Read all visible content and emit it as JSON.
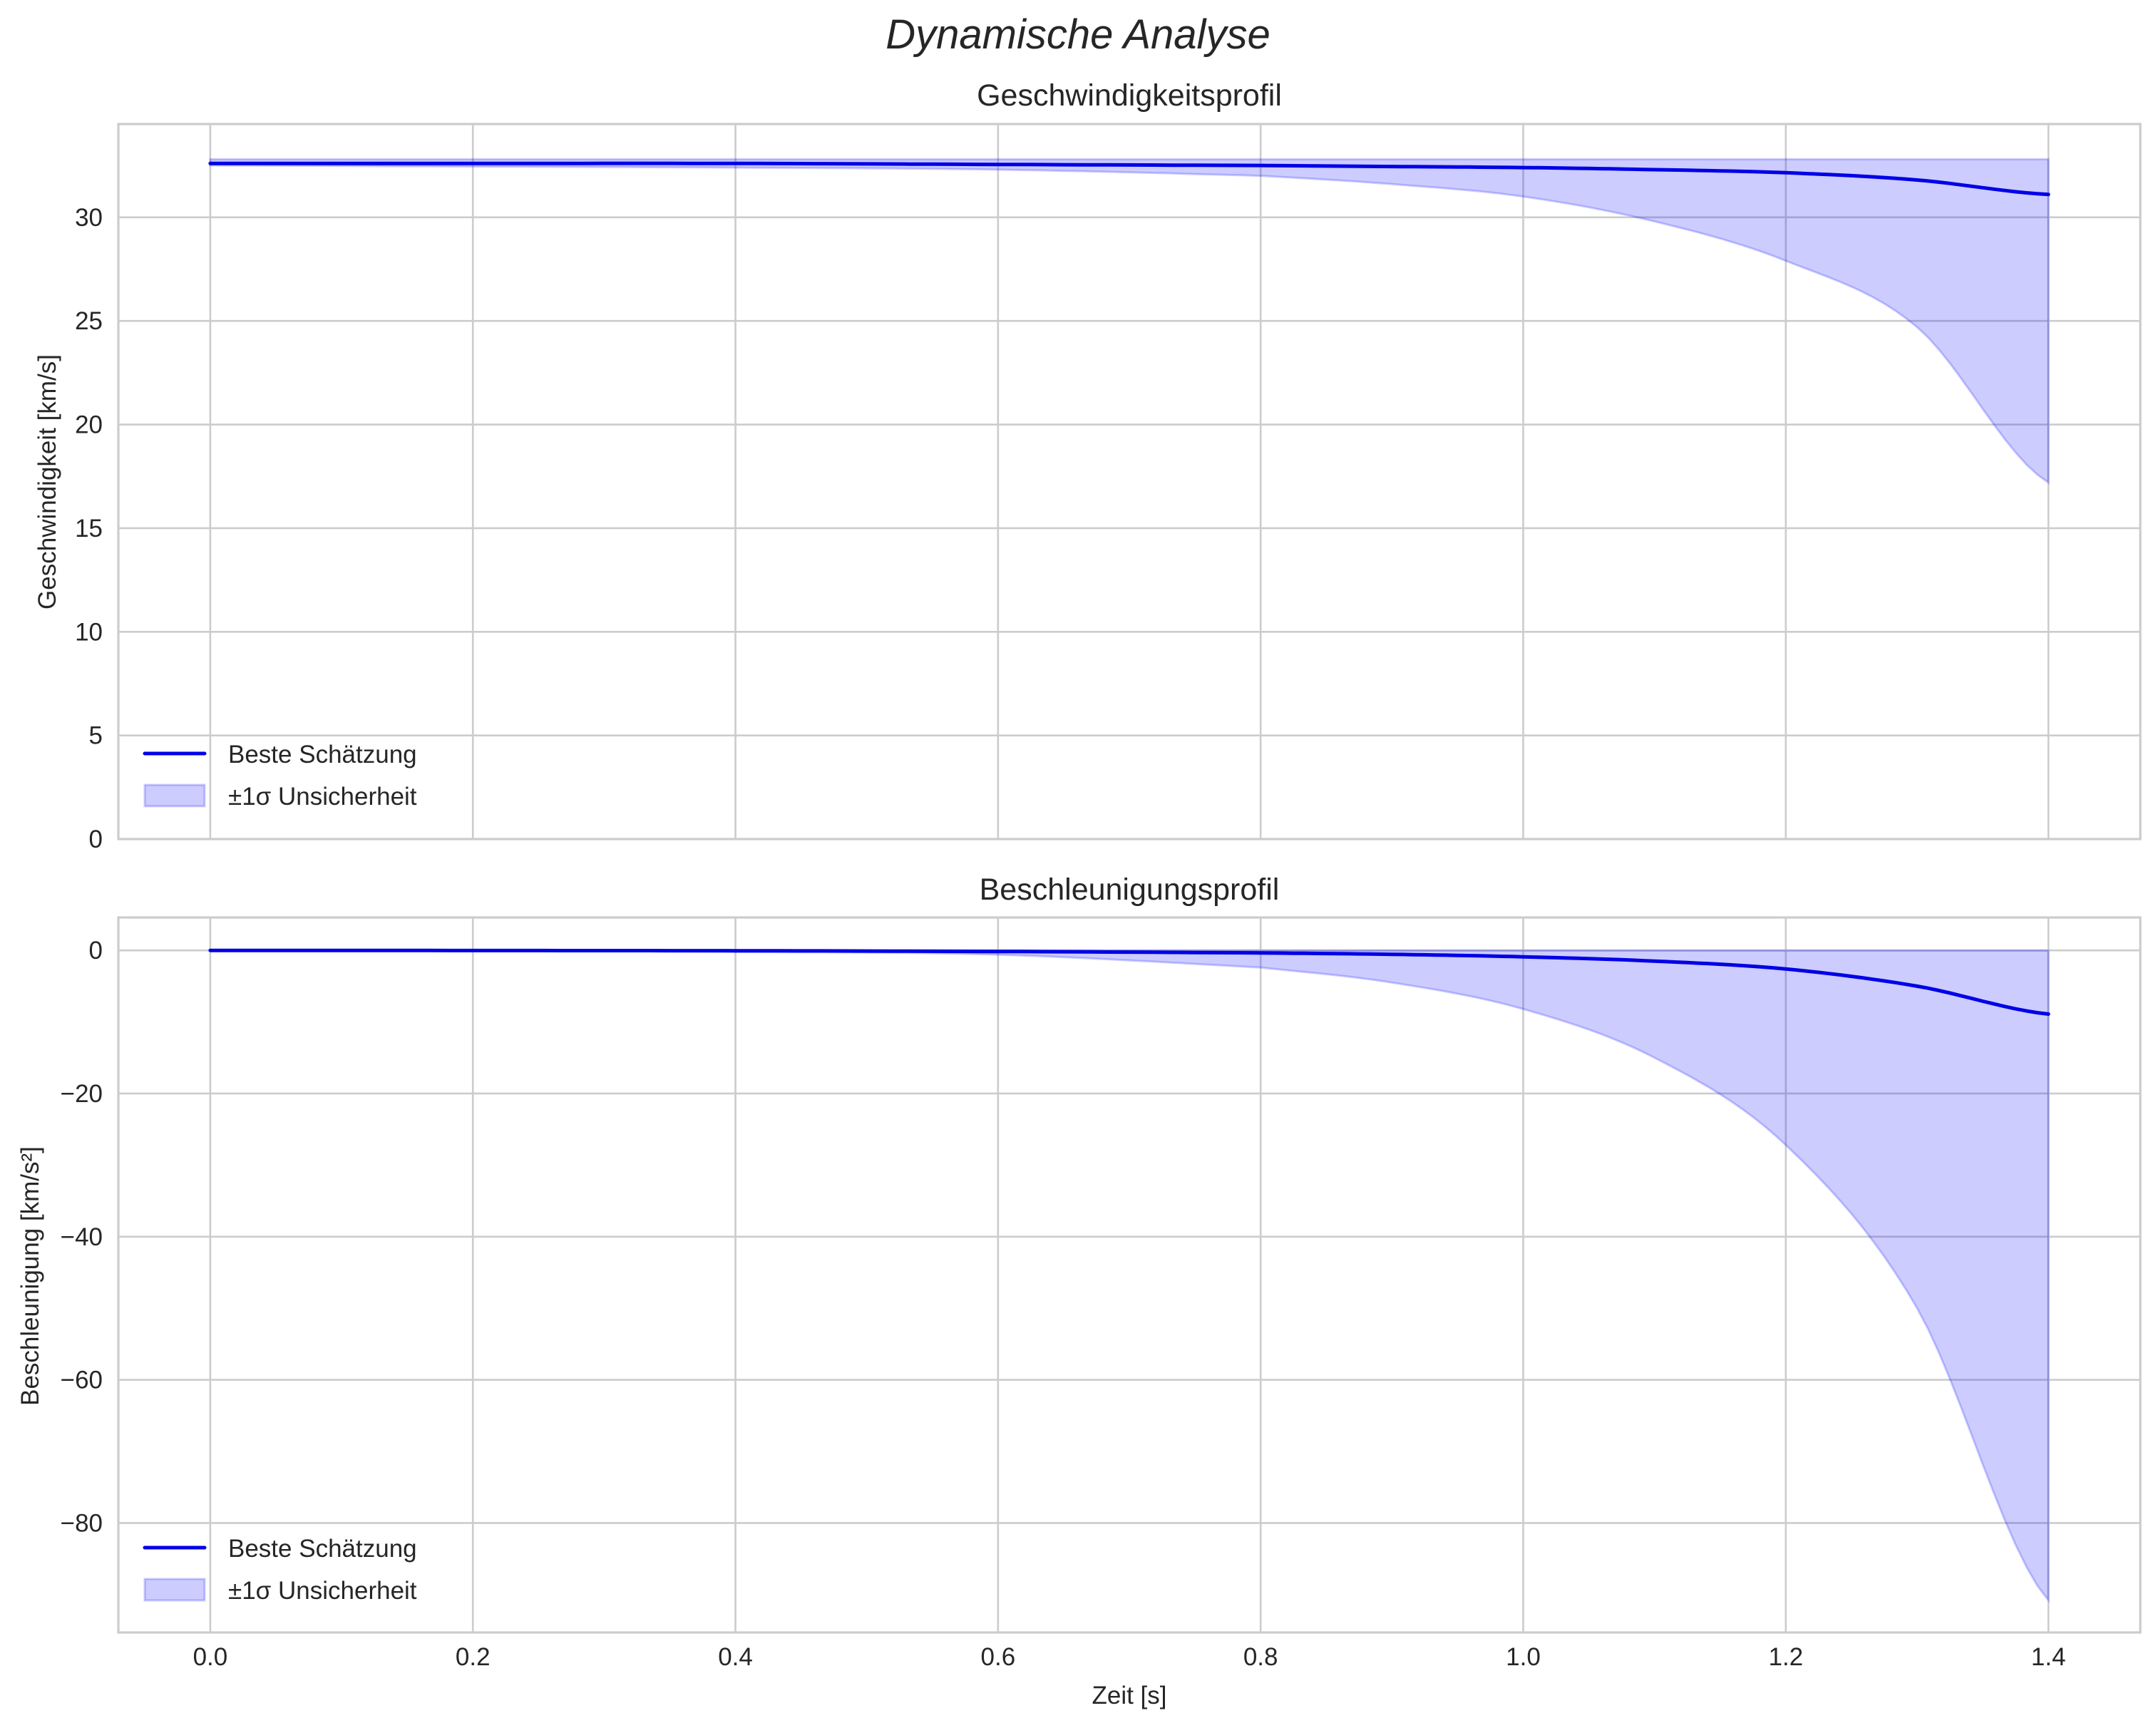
{
  "figure": {
    "suptitle": "Dynamische Analyse",
    "colors": {
      "line": "#0000e6",
      "band_fill": "#0000ff",
      "band_alpha": 0.2,
      "grid": "#cccccc",
      "text": "#262626",
      "background": "#ffffff"
    },
    "xlabel": "Zeit [s]"
  },
  "panels": [
    {
      "title": "Geschwindigkeitsprofil",
      "ylabel": "Geschwindigkeit [km/s]",
      "yticks": [
        "0",
        "5",
        "10",
        "15",
        "20",
        "25",
        "30"
      ],
      "legend": [
        "Beste Schätzung",
        "±1σ Unsicherheit"
      ]
    },
    {
      "title": "Beschleunigungsprofil",
      "ylabel": "Beschleunigung [km/s²]",
      "yticks": [
        "0",
        "−20",
        "−40",
        "−60",
        "−80"
      ],
      "legend": [
        "Beste Schätzung",
        "±1σ Unsicherheit"
      ]
    }
  ],
  "xticks": [
    "0.0",
    "0.2",
    "0.4",
    "0.6",
    "0.8",
    "1.0",
    "1.2",
    "1.4"
  ],
  "chart_data": [
    {
      "type": "line",
      "title": "Geschwindigkeitsprofil",
      "xlabel": "Zeit [s]",
      "ylabel": "Geschwindigkeit [km/s]",
      "xlim": [
        -0.07,
        1.47
      ],
      "ylim": [
        0,
        34.5
      ],
      "xticks": [
        0.0,
        0.2,
        0.4,
        0.6,
        0.8,
        1.0,
        1.2,
        1.4
      ],
      "yticks": [
        0,
        5,
        10,
        15,
        20,
        25,
        30
      ],
      "grid": true,
      "legend_position": "lower left",
      "x": [
        0.0,
        0.2,
        0.4,
        0.6,
        0.8,
        0.9,
        1.0,
        1.1,
        1.2,
        1.3,
        1.4
      ],
      "series": [
        {
          "name": "Beste Schätzung",
          "kind": "line",
          "values": [
            32.6,
            32.6,
            32.6,
            32.55,
            32.5,
            32.45,
            32.4,
            32.3,
            32.15,
            31.8,
            31.1
          ]
        },
        {
          "name": "±1σ Unsicherheit (upper)",
          "kind": "band_upper",
          "values": [
            32.8,
            32.8,
            32.8,
            32.8,
            32.8,
            32.8,
            32.8,
            32.8,
            32.8,
            32.8,
            32.8
          ]
        },
        {
          "name": "±1σ Unsicherheit (lower)",
          "kind": "band_lower",
          "values": [
            32.5,
            32.45,
            32.4,
            32.3,
            32.0,
            31.6,
            31.0,
            29.8,
            27.9,
            24.7,
            17.2
          ]
        }
      ]
    },
    {
      "type": "line",
      "title": "Beschleunigungsprofil",
      "xlabel": "Zeit [s]",
      "ylabel": "Beschleunigung [km/s²]",
      "xlim": [
        -0.07,
        1.47
      ],
      "ylim": [
        -95.3,
        4.6
      ],
      "xticks": [
        0.0,
        0.2,
        0.4,
        0.6,
        0.8,
        1.0,
        1.2,
        1.4
      ],
      "yticks": [
        0,
        -20,
        -40,
        -60,
        -80
      ],
      "grid": true,
      "legend_position": "lower left",
      "x": [
        0.0,
        0.2,
        0.4,
        0.6,
        0.8,
        0.9,
        1.0,
        1.1,
        1.2,
        1.3,
        1.4
      ],
      "series": [
        {
          "name": "Beste Schätzung",
          "kind": "line",
          "values": [
            0.0,
            -0.02,
            -0.05,
            -0.15,
            -0.35,
            -0.55,
            -0.9,
            -1.5,
            -2.6,
            -5.0,
            -8.9
          ]
        },
        {
          "name": "±1σ Unsicherheit (upper)",
          "kind": "band_upper",
          "values": [
            0,
            0,
            0,
            0,
            0,
            0,
            0,
            0,
            0,
            0,
            0
          ]
        },
        {
          "name": "±1σ Unsicherheit (lower)",
          "kind": "band_lower",
          "values": [
            0.0,
            -0.05,
            -0.2,
            -0.6,
            -2.4,
            -4.5,
            -8.2,
            -15.0,
            -27.2,
            -50.0,
            -90.8
          ]
        }
      ]
    }
  ]
}
